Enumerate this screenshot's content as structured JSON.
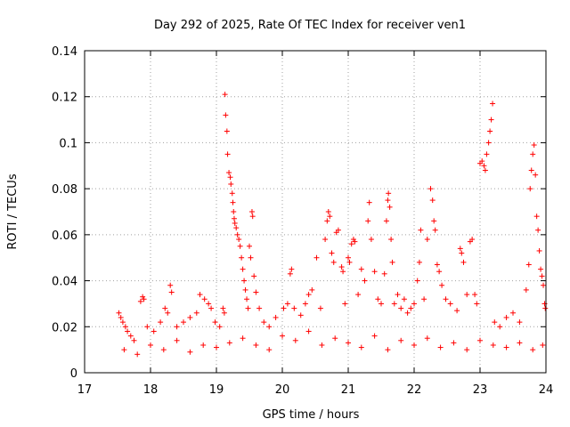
{
  "chart_data": {
    "type": "scatter",
    "title": "Day 292 of 2025, Rate Of TEC Index for receiver ven1",
    "xlabel": "GPS time / hours",
    "ylabel": "ROTI / TECUs",
    "xlim": [
      17,
      24
    ],
    "ylim": [
      0,
      0.14
    ],
    "xticks": [
      17,
      18,
      19,
      20,
      21,
      22,
      23,
      24
    ],
    "xtick_labels": [
      "17",
      "18",
      "19",
      "20",
      "21",
      "22",
      "23",
      "24"
    ],
    "yticks": [
      0,
      0.02,
      0.04,
      0.06,
      0.08,
      0.1,
      0.12,
      0.14
    ],
    "ytick_labels": [
      "0",
      "0.02",
      "0.04",
      "0.06",
      "0.08",
      "0.1",
      "0.12",
      "0.14"
    ],
    "grid": true,
    "marker": "+",
    "color": "#ff0000",
    "series": [
      {
        "name": "ROTI",
        "points": [
          [
            17.52,
            0.026
          ],
          [
            17.55,
            0.024
          ],
          [
            17.58,
            0.022
          ],
          [
            17.62,
            0.02
          ],
          [
            17.65,
            0.018
          ],
          [
            17.7,
            0.016
          ],
          [
            17.75,
            0.014
          ],
          [
            17.85,
            0.031
          ],
          [
            17.88,
            0.033
          ],
          [
            17.9,
            0.032
          ],
          [
            17.95,
            0.02
          ],
          [
            18.05,
            0.018
          ],
          [
            18.15,
            0.022
          ],
          [
            18.22,
            0.028
          ],
          [
            18.26,
            0.026
          ],
          [
            18.3,
            0.038
          ],
          [
            18.32,
            0.035
          ],
          [
            18.4,
            0.02
          ],
          [
            18.5,
            0.022
          ],
          [
            18.6,
            0.024
          ],
          [
            18.7,
            0.026
          ],
          [
            18.75,
            0.034
          ],
          [
            18.82,
            0.032
          ],
          [
            18.88,
            0.03
          ],
          [
            18.92,
            0.028
          ],
          [
            18.98,
            0.022
          ],
          [
            19.05,
            0.02
          ],
          [
            19.1,
            0.028
          ],
          [
            19.12,
            0.026
          ],
          [
            19.13,
            0.121
          ],
          [
            19.14,
            0.112
          ],
          [
            19.16,
            0.105
          ],
          [
            19.17,
            0.095
          ],
          [
            19.19,
            0.087
          ],
          [
            19.21,
            0.085
          ],
          [
            19.22,
            0.082
          ],
          [
            19.24,
            0.078
          ],
          [
            19.25,
            0.074
          ],
          [
            19.26,
            0.07
          ],
          [
            19.27,
            0.067
          ],
          [
            19.28,
            0.065
          ],
          [
            19.3,
            0.063
          ],
          [
            19.32,
            0.06
          ],
          [
            19.34,
            0.058
          ],
          [
            19.36,
            0.055
          ],
          [
            19.38,
            0.05
          ],
          [
            19.4,
            0.045
          ],
          [
            19.42,
            0.04
          ],
          [
            19.44,
            0.036
          ],
          [
            19.46,
            0.032
          ],
          [
            19.48,
            0.028
          ],
          [
            19.5,
            0.055
          ],
          [
            19.52,
            0.05
          ],
          [
            19.54,
            0.07
          ],
          [
            19.55,
            0.068
          ],
          [
            19.57,
            0.042
          ],
          [
            19.6,
            0.035
          ],
          [
            19.65,
            0.028
          ],
          [
            19.72,
            0.022
          ],
          [
            19.8,
            0.02
          ],
          [
            19.9,
            0.024
          ],
          [
            20.02,
            0.028
          ],
          [
            20.08,
            0.03
          ],
          [
            20.12,
            0.043
          ],
          [
            20.14,
            0.045
          ],
          [
            20.18,
            0.028
          ],
          [
            20.28,
            0.025
          ],
          [
            20.35,
            0.03
          ],
          [
            20.4,
            0.034
          ],
          [
            20.45,
            0.036
          ],
          [
            20.52,
            0.05
          ],
          [
            20.58,
            0.028
          ],
          [
            20.65,
            0.058
          ],
          [
            20.68,
            0.066
          ],
          [
            20.7,
            0.07
          ],
          [
            20.72,
            0.068
          ],
          [
            20.75,
            0.052
          ],
          [
            20.78,
            0.048
          ],
          [
            20.82,
            0.061
          ],
          [
            20.85,
            0.062
          ],
          [
            20.9,
            0.046
          ],
          [
            20.92,
            0.044
          ],
          [
            20.95,
            0.03
          ],
          [
            21.0,
            0.05
          ],
          [
            21.02,
            0.048
          ],
          [
            21.05,
            0.056
          ],
          [
            21.08,
            0.058
          ],
          [
            21.1,
            0.057
          ],
          [
            21.15,
            0.034
          ],
          [
            21.2,
            0.045
          ],
          [
            21.25,
            0.04
          ],
          [
            21.3,
            0.066
          ],
          [
            21.32,
            0.074
          ],
          [
            21.35,
            0.058
          ],
          [
            21.4,
            0.044
          ],
          [
            21.45,
            0.032
          ],
          [
            21.5,
            0.03
          ],
          [
            21.55,
            0.043
          ],
          [
            21.58,
            0.066
          ],
          [
            21.6,
            0.075
          ],
          [
            21.61,
            0.078
          ],
          [
            21.63,
            0.072
          ],
          [
            21.65,
            0.058
          ],
          [
            21.67,
            0.048
          ],
          [
            21.7,
            0.03
          ],
          [
            21.75,
            0.034
          ],
          [
            21.8,
            0.028
          ],
          [
            21.85,
            0.032
          ],
          [
            21.9,
            0.026
          ],
          [
            21.95,
            0.028
          ],
          [
            22.0,
            0.03
          ],
          [
            22.05,
            0.04
          ],
          [
            22.08,
            0.048
          ],
          [
            22.1,
            0.062
          ],
          [
            22.15,
            0.032
          ],
          [
            22.2,
            0.058
          ],
          [
            22.25,
            0.08
          ],
          [
            22.28,
            0.075
          ],
          [
            22.3,
            0.066
          ],
          [
            22.32,
            0.062
          ],
          [
            22.35,
            0.047
          ],
          [
            22.38,
            0.044
          ],
          [
            22.42,
            0.038
          ],
          [
            22.48,
            0.032
          ],
          [
            22.55,
            0.03
          ],
          [
            22.65,
            0.027
          ],
          [
            22.7,
            0.054
          ],
          [
            22.72,
            0.052
          ],
          [
            22.75,
            0.048
          ],
          [
            22.8,
            0.034
          ],
          [
            22.85,
            0.057
          ],
          [
            22.88,
            0.058
          ],
          [
            22.92,
            0.034
          ],
          [
            22.95,
            0.03
          ],
          [
            23.0,
            0.091
          ],
          [
            23.03,
            0.092
          ],
          [
            23.06,
            0.09
          ],
          [
            23.08,
            0.088
          ],
          [
            23.1,
            0.095
          ],
          [
            23.13,
            0.1
          ],
          [
            23.15,
            0.105
          ],
          [
            23.17,
            0.11
          ],
          [
            23.19,
            0.117
          ],
          [
            23.22,
            0.022
          ],
          [
            23.3,
            0.02
          ],
          [
            23.4,
            0.024
          ],
          [
            23.5,
            0.026
          ],
          [
            23.6,
            0.022
          ],
          [
            23.7,
            0.036
          ],
          [
            23.74,
            0.047
          ],
          [
            23.76,
            0.08
          ],
          [
            23.78,
            0.088
          ],
          [
            23.8,
            0.095
          ],
          [
            23.82,
            0.099
          ],
          [
            23.84,
            0.086
          ],
          [
            23.86,
            0.068
          ],
          [
            23.88,
            0.062
          ],
          [
            23.9,
            0.053
          ],
          [
            23.92,
            0.045
          ],
          [
            23.94,
            0.042
          ],
          [
            23.96,
            0.038
          ],
          [
            23.98,
            0.03
          ],
          [
            23.99,
            0.028
          ],
          [
            17.6,
            0.01
          ],
          [
            17.8,
            0.008
          ],
          [
            18.0,
            0.012
          ],
          [
            18.2,
            0.01
          ],
          [
            18.4,
            0.014
          ],
          [
            18.6,
            0.009
          ],
          [
            18.8,
            0.012
          ],
          [
            19.0,
            0.011
          ],
          [
            19.2,
            0.013
          ],
          [
            19.4,
            0.015
          ],
          [
            19.6,
            0.012
          ],
          [
            19.8,
            0.01
          ],
          [
            20.0,
            0.016
          ],
          [
            20.2,
            0.014
          ],
          [
            20.4,
            0.018
          ],
          [
            20.6,
            0.012
          ],
          [
            20.8,
            0.015
          ],
          [
            21.0,
            0.013
          ],
          [
            21.2,
            0.011
          ],
          [
            21.4,
            0.016
          ],
          [
            21.6,
            0.01
          ],
          [
            21.8,
            0.014
          ],
          [
            22.0,
            0.012
          ],
          [
            22.2,
            0.015
          ],
          [
            22.4,
            0.011
          ],
          [
            22.6,
            0.013
          ],
          [
            22.8,
            0.01
          ],
          [
            23.0,
            0.014
          ],
          [
            23.2,
            0.012
          ],
          [
            23.4,
            0.011
          ],
          [
            23.6,
            0.013
          ],
          [
            23.8,
            0.01
          ],
          [
            23.95,
            0.012
          ]
        ]
      }
    ]
  }
}
